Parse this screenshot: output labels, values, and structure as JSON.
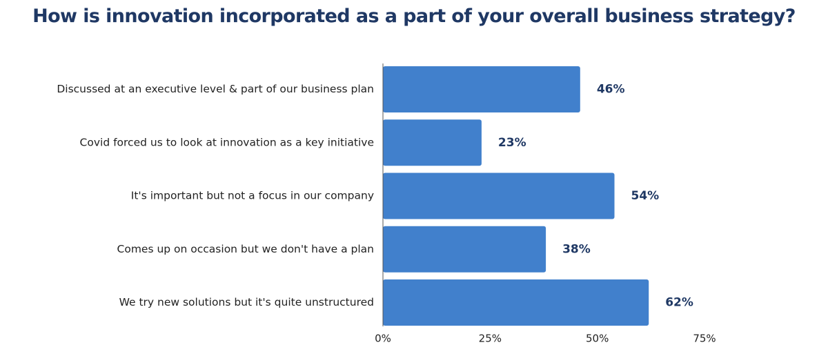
{
  "chart_data": {
    "type": "bar",
    "orientation": "horizontal",
    "title": "How is innovation incorporated as a part of your overall business strategy?",
    "categories": [
      "Discussed at an executive level & part of our business plan",
      "Covid forced us to look at innovation as a key initiative",
      "It's important but not a focus in our company",
      "Comes up on occasion but we don't have a plan",
      "We try new solutions but it's quite unstructured"
    ],
    "values": [
      46,
      23,
      54,
      38,
      62
    ],
    "data_labels": [
      "46%",
      "23%",
      "54%",
      "38%",
      "62%"
    ],
    "xlim": [
      0,
      75
    ],
    "ticks": [
      0,
      25,
      50,
      75
    ],
    "tick_labels": [
      "0%",
      "25%",
      "50%",
      "75%"
    ],
    "grid": false,
    "legend": "none",
    "colors": {
      "bar": "#4180cc",
      "value_label": "#1f3864",
      "title": "#1f3864",
      "axis": "#555555"
    }
  }
}
